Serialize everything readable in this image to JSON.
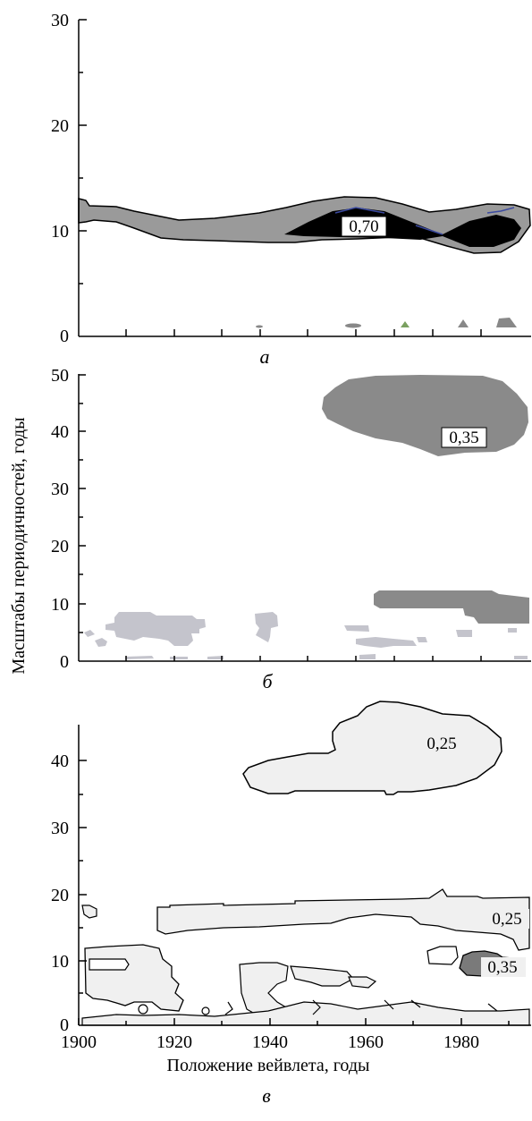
{
  "chart_data": [
    {
      "type": "heatmap",
      "panel_label": "а",
      "title": "",
      "xlabel": "",
      "ylabel": "",
      "xlim": [
        1900,
        1995
      ],
      "ylim": [
        0,
        30
      ],
      "y_ticks": [
        "0",
        "10",
        "20",
        "30"
      ],
      "levels": [
        {
          "label": "0,70",
          "x": 1962,
          "y": 10.5
        }
      ],
      "regions": [
        {
          "kind": "grey",
          "note": "contour band along scale ≈10–12 years, 1900–1995"
        },
        {
          "kind": "black",
          "note": "core around 1948–1988, scale ≈9–12 years"
        }
      ]
    },
    {
      "type": "heatmap",
      "panel_label": "б",
      "title": "",
      "xlabel": "",
      "ylabel": "Масштабы периодичностей, годы",
      "xlim": [
        1900,
        1995
      ],
      "ylim": [
        0,
        55
      ],
      "y_ticks": [
        "0",
        "10",
        "20",
        "30",
        "40",
        "50"
      ],
      "levels": [
        {
          "label": "0,35",
          "x": 1978,
          "y": 43
        }
      ]
    },
    {
      "type": "heatmap",
      "panel_label": "в",
      "title": "",
      "xlabel": "Положение вейвлета, годы",
      "ylabel": "",
      "xlim": [
        1900,
        1995
      ],
      "ylim": [
        0,
        45
      ],
      "x_ticks": [
        "1900",
        "1920",
        "1940",
        "1960",
        "1980"
      ],
      "y_ticks": [
        "0",
        "10",
        "20",
        "30",
        "40"
      ],
      "levels": [
        {
          "label": "0,25",
          "x": 1972,
          "y": 38
        },
        {
          "label": "0,25",
          "x": 1989,
          "y": 12
        },
        {
          "label": "0,35",
          "x": 1989,
          "y": 7.5
        }
      ]
    }
  ]
}
